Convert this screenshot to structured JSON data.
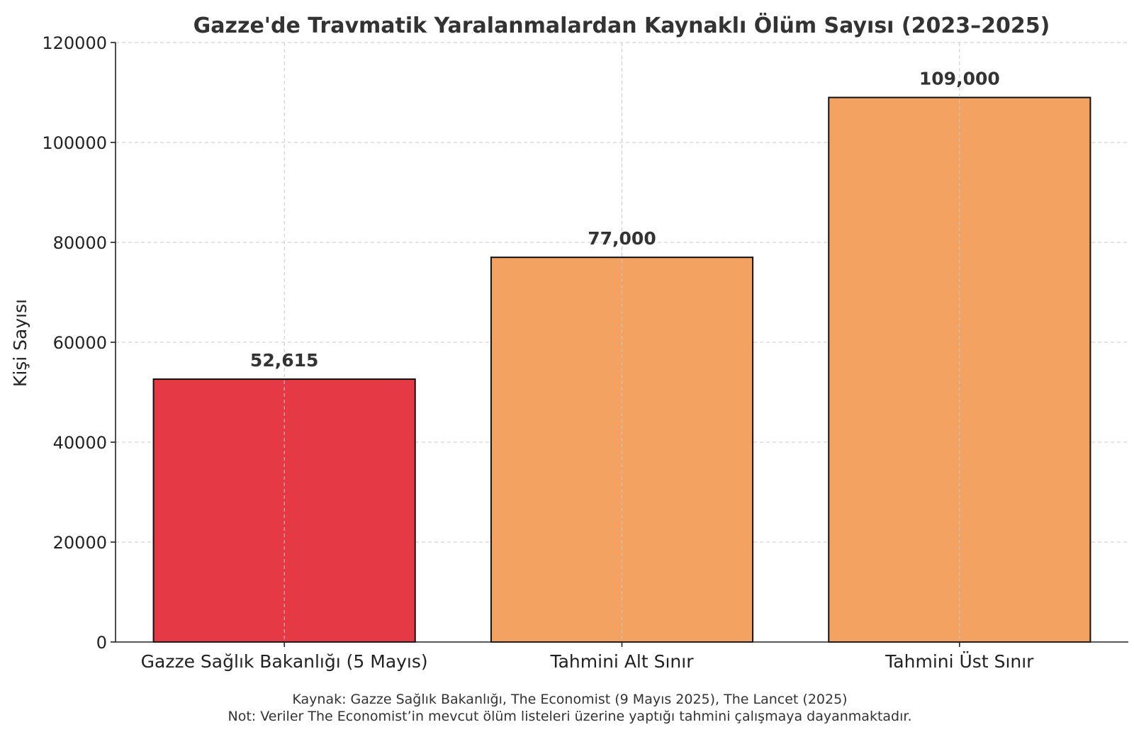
{
  "chart_data": {
    "type": "bar",
    "title": "Gazze'de Travmatik Yaralanmalardan Kaynaklı Ölüm Sayısı (2023–2025)",
    "xlabel": "",
    "ylabel": "Kişi Sayısı",
    "categories": [
      "Gazze Sağlık Bakanlığı (5 Mayıs)",
      "Tahmini Alt Sınır",
      "Tahmini Üst Sınır"
    ],
    "values": [
      52615,
      77000,
      109000
    ],
    "data_labels": [
      "52,615",
      "77,000",
      "109,000"
    ],
    "bar_colors": [
      "#e63946",
      "#f4a261",
      "#f4a261"
    ],
    "bar_edge_color": "#111111",
    "ylim": [
      0,
      120000
    ],
    "yticks": [
      0,
      20000,
      40000,
      60000,
      80000,
      100000,
      120000
    ],
    "ytick_labels": [
      "0",
      "20000",
      "40000",
      "60000",
      "80000",
      "100000",
      "120000"
    ],
    "grid": true,
    "footnotes": [
      "Kaynak: Gazze Sağlık Bakanlığı, The Economist (9 Mayıs 2025), The Lancet (2025)",
      "Not: Veriler The Economist’in mevcut ölüm listeleri üzerine yaptığı tahmini çalışmaya dayanmaktadır."
    ]
  }
}
